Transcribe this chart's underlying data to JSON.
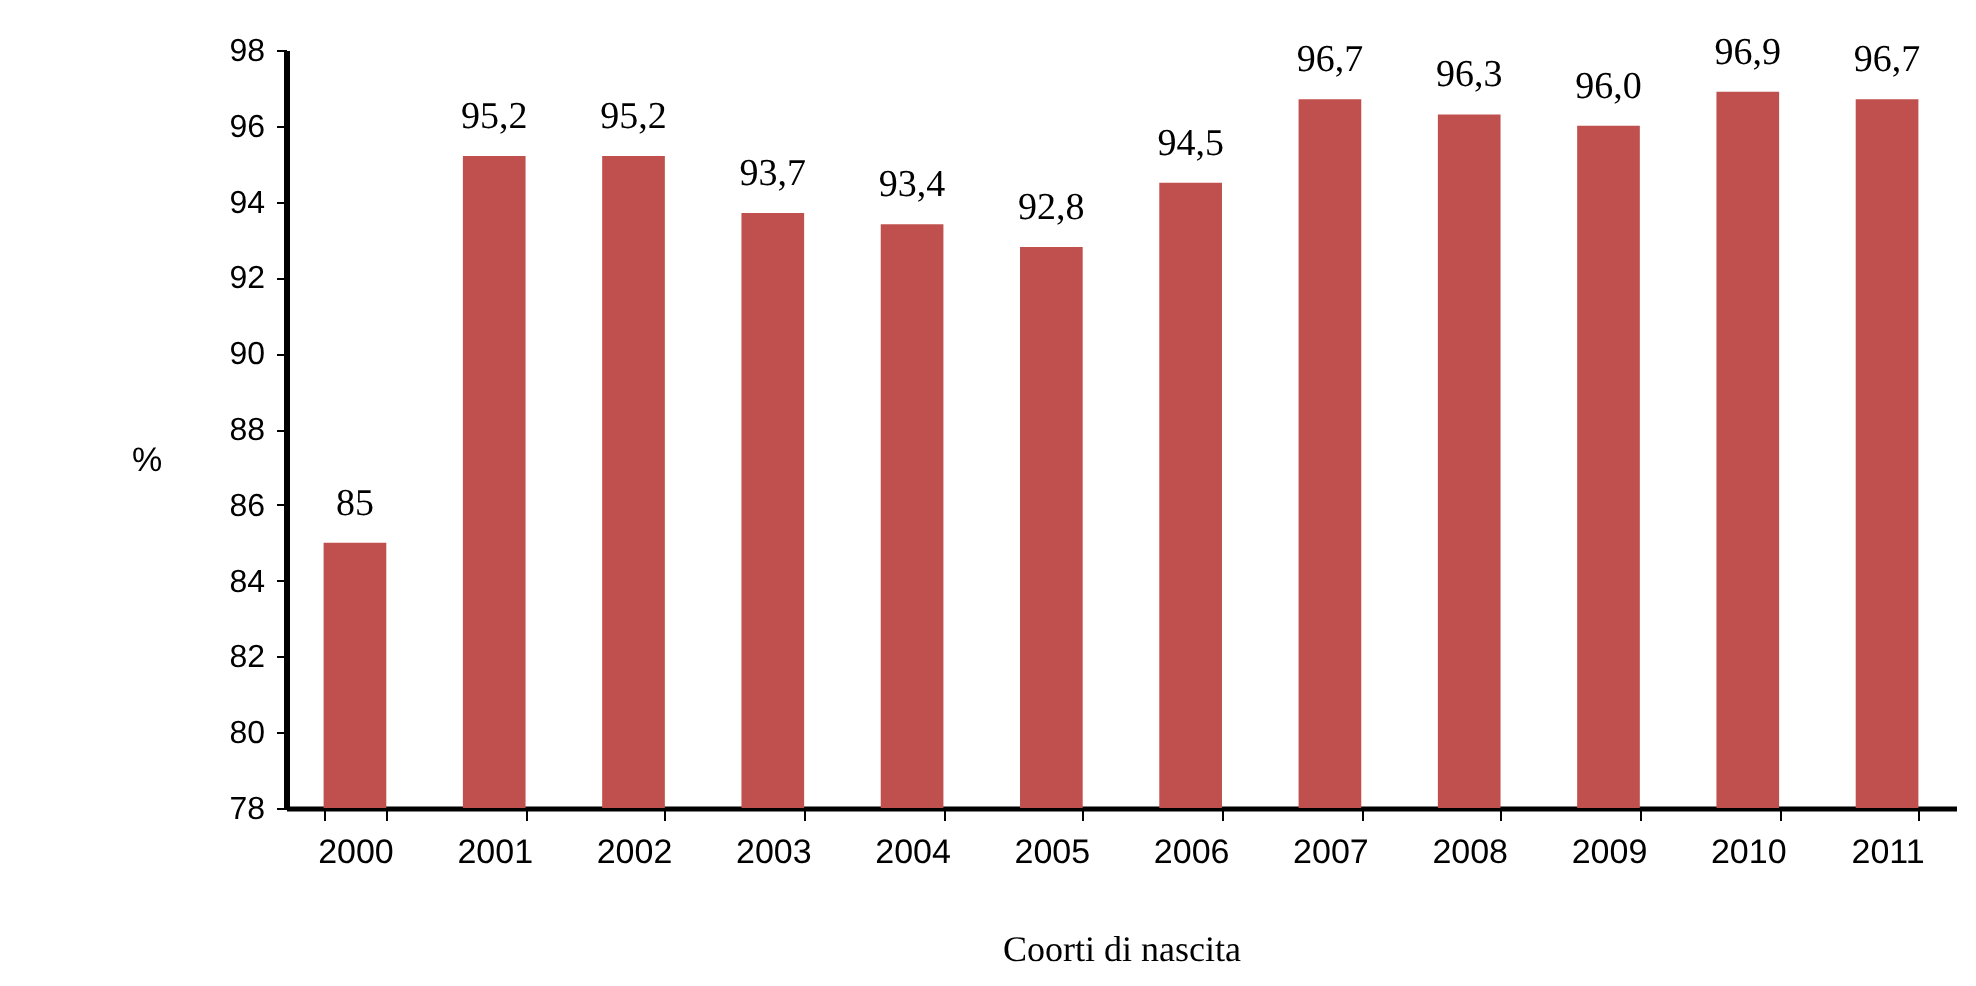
{
  "chart_data": {
    "type": "bar",
    "xlabel": "Coorti di nascita",
    "ylabel": "%",
    "categories": [
      "2000",
      "2001",
      "2002",
      "2003",
      "2004",
      "2005",
      "2006",
      "2007",
      "2008",
      "2009",
      "2010",
      "2011"
    ],
    "values": [
      85,
      95.2,
      95.2,
      93.7,
      93.4,
      92.8,
      94.5,
      96.7,
      96.3,
      96.0,
      96.9,
      96.7
    ],
    "value_labels": [
      "85",
      "95,2",
      "95,2",
      "93,7",
      "93,4",
      "92,8",
      "94,5",
      "96,7",
      "96,3",
      "96,0",
      "96,9",
      "96,7"
    ],
    "color": "#c0504d",
    "ylim": [
      78,
      98
    ],
    "yticks": [
      78,
      80,
      82,
      84,
      86,
      88,
      90,
      92,
      94,
      96,
      98
    ]
  }
}
